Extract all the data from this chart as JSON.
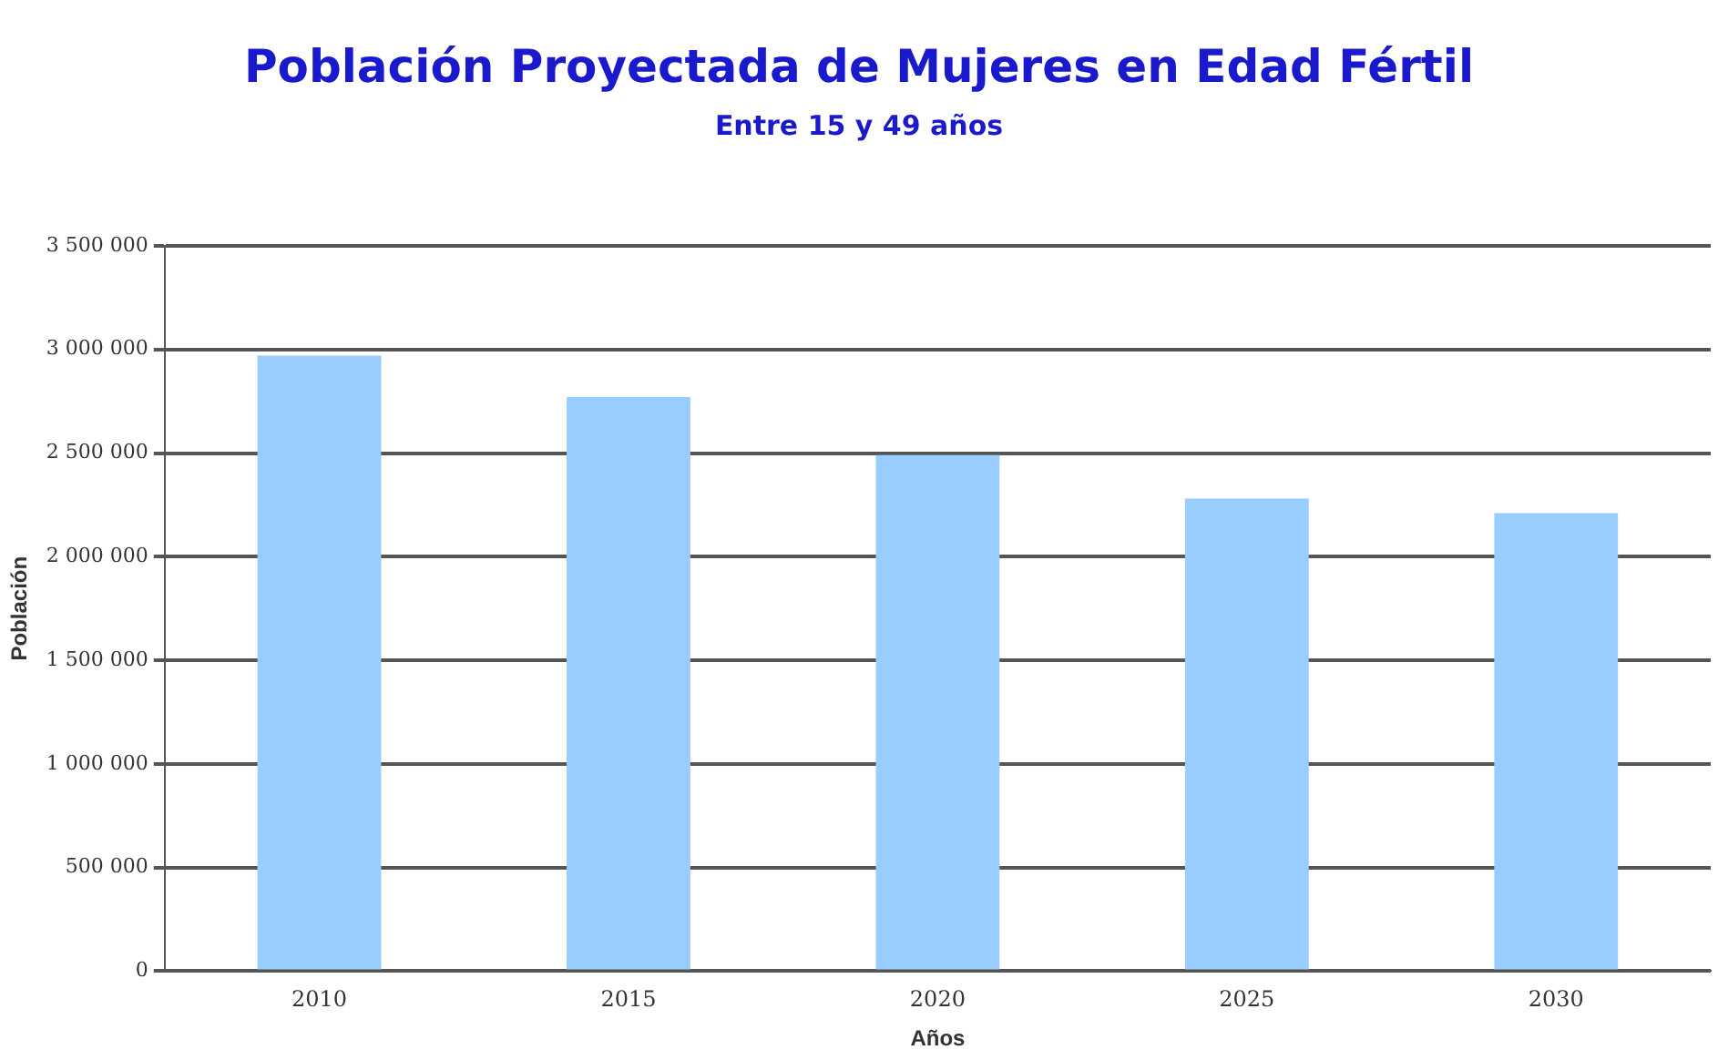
{
  "chart_data": {
    "type": "bar",
    "title": "Población Proyectada de Mujeres en Edad Fértil",
    "subtitle": "Entre 15 y 49 años",
    "xlabel": "Años",
    "ylabel": "Población",
    "categories": [
      "2010",
      "2015",
      "2020",
      "2025",
      "2030"
    ],
    "values": [
      2970000,
      2770000,
      2490000,
      2280000,
      2210000
    ],
    "color": "#99ccff",
    "ylim": [
      0,
      3500000
    ],
    "yticks": [
      {
        "value": 0,
        "label": "0"
      },
      {
        "value": 500000,
        "label": "500 000"
      },
      {
        "value": 1000000,
        "label": "1 000 000"
      },
      {
        "value": 1500000,
        "label": "1 500 000"
      },
      {
        "value": 2000000,
        "label": "2 000 000"
      },
      {
        "value": 2500000,
        "label": "2 500 000"
      },
      {
        "value": 3000000,
        "label": "3 000 000"
      },
      {
        "value": 3500000,
        "label": "3 500 000"
      }
    ],
    "grid": "y"
  }
}
